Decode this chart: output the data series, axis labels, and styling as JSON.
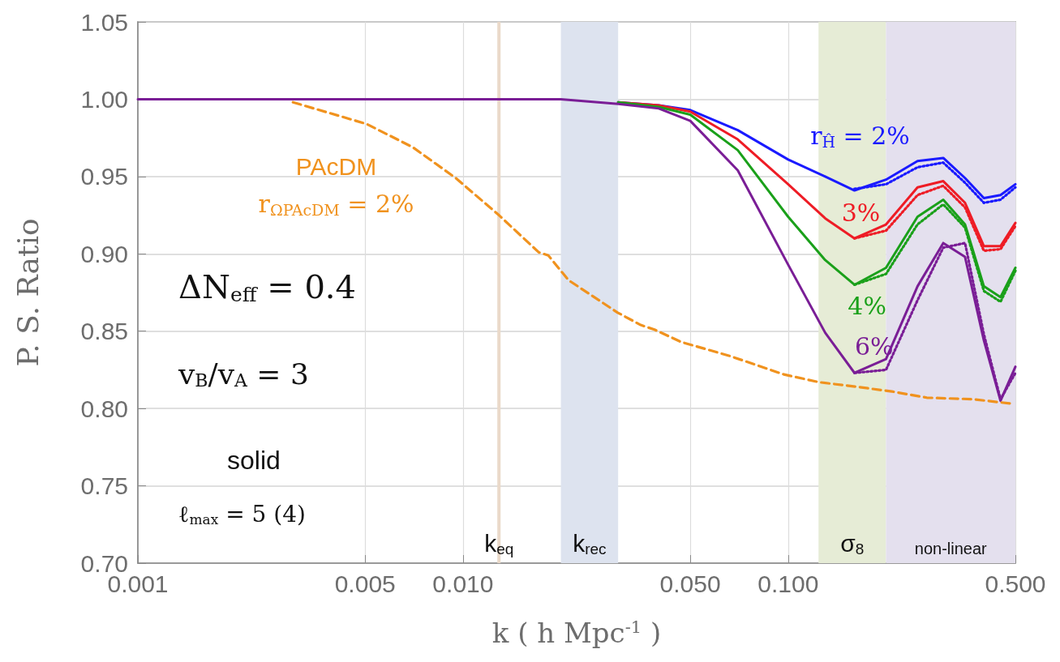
{
  "chart_data": {
    "type": "line",
    "xlabel": "k ( h Mpc$^{-1}$ )",
    "ylabel": "P. S. Ratio",
    "log": "x",
    "grid": true,
    "legend": false,
    "xlim": [
      0.001,
      0.5
    ],
    "xticks": [
      0.001,
      0.005,
      {
        "value": 0.01,
        "label": "0.010"
      },
      {
        "value": 0.05,
        "label": "0.050"
      },
      {
        "value": 0.1,
        "label": "0.100"
      },
      {
        "value": 0.5,
        "label": "0.500"
      }
    ],
    "ylim": [
      0.7,
      1.05
    ],
    "yticks": [
      {
        "value": 0.7,
        "label": "0.70"
      },
      0.75,
      {
        "value": 0.8,
        "label": "0.80"
      },
      0.85,
      {
        "value": 0.9,
        "label": "0.90"
      },
      0.95,
      {
        "value": 1,
        "label": "1.00"
      },
      1.05
    ],
    "x": [
      0.001,
      0.005,
      0.01,
      0.02,
      0.03,
      0.04,
      0.05,
      0.07,
      0.1,
      0.13,
      0.16,
      0.2,
      0.25,
      0.3,
      0.35,
      0.4,
      0.45,
      0.5
    ],
    "series": [
      {
        "name": "r$_{Ĥ}$ = 2%",
        "color": "#1a1aff",
        "line_style": "solid",
        "values": [
          null,
          null,
          null,
          null,
          0.998,
          0.996,
          0.993,
          0.98,
          0.961,
          0.95,
          0.941,
          0.948,
          0.96,
          0.962,
          0.949,
          0.936,
          0.938,
          0.945
        ]
      },
      {
        "color": "#1a1aff",
        "line_style": "dotted",
        "values": [
          null,
          null,
          null,
          null,
          null,
          null,
          null,
          null,
          null,
          null,
          0.942,
          0.945,
          0.956,
          0.959,
          0.946,
          0.933,
          0.935,
          0.943
        ]
      },
      {
        "name": "3%",
        "color": "#ee1c25",
        "line_style": "solid",
        "values": [
          null,
          null,
          null,
          null,
          0.998,
          0.996,
          0.992,
          0.974,
          0.945,
          0.923,
          0.91,
          0.919,
          0.943,
          0.947,
          0.933,
          0.905,
          0.905,
          0.92
        ]
      },
      {
        "color": "#ee1c25",
        "line_style": "dotted",
        "values": [
          null,
          null,
          null,
          null,
          null,
          null,
          null,
          null,
          null,
          null,
          0.91,
          0.915,
          0.938,
          0.944,
          0.93,
          0.902,
          0.903,
          0.918
        ]
      },
      {
        "name": "4%",
        "color": "#1aa01a",
        "line_style": "solid",
        "values": [
          null,
          null,
          null,
          null,
          0.998,
          0.995,
          0.99,
          0.967,
          0.924,
          0.896,
          0.88,
          0.891,
          0.924,
          0.935,
          0.919,
          0.879,
          0.872,
          0.891
        ]
      },
      {
        "color": "#1aa01a",
        "line_style": "dotted",
        "values": [
          null,
          null,
          null,
          null,
          null,
          null,
          null,
          null,
          null,
          null,
          0.88,
          0.887,
          0.919,
          0.932,
          0.917,
          0.876,
          0.869,
          0.889
        ]
      },
      {
        "color": "#7a1e96",
        "line_style": "dotted",
        "values": [
          null,
          null,
          null,
          null,
          null,
          null,
          null,
          null,
          null,
          null,
          0.823,
          0.825,
          0.87,
          0.904,
          0.907,
          0.848,
          0.806,
          0.823
        ]
      },
      {
        "name": "6%",
        "color": "#7a1e96",
        "line_style": "solid",
        "values": [
          1,
          1,
          1,
          1,
          0.997,
          0.994,
          0.986,
          0.954,
          0.893,
          0.849,
          0.823,
          0.832,
          0.879,
          0.907,
          0.898,
          0.844,
          0.805,
          0.827
        ]
      },
      {
        "name": "PAcDM\nr$_{ΩPAcDM}$ = 2%",
        "color": "#f0921e",
        "line_style": "dashed",
        "x": [
          0.003,
          0.00505,
          0.007,
          0.0095,
          0.0129,
          0.0171,
          0.0183,
          0.0211,
          0.0299,
          0.0352,
          0.0388,
          0.0469,
          0.0661,
          0.0971,
          0.1245,
          0.163,
          0.2085,
          0.267,
          0.3706,
          0.493
        ],
        "values": [
          0.998,
          0.984,
          0.969,
          0.949,
          0.925,
          0.901,
          0.899,
          0.883,
          0.862,
          0.854,
          0.851,
          0.843,
          0.834,
          0.822,
          0.817,
          0.814,
          0.811,
          0.807,
          0.806,
          0.803
        ]
      }
    ],
    "ref_lines": [
      {
        "axis": "x",
        "value": 0.0129,
        "label": "k$_{eq}$",
        "color": "#ead9c9",
        "line_style": "solid"
      }
    ],
    "bands": [
      {
        "axis": "x",
        "from": 0.02,
        "to": 0.03,
        "label": "k$_{rec}$",
        "color": "#dde3ef"
      },
      {
        "axis": "x",
        "from": 0.124,
        "to": 0.2,
        "label": "σ$_{8}$",
        "color": "#e6ecd6"
      },
      {
        "axis": "x",
        "from": 0.2,
        "to": 0.5,
        "label": "non-linear",
        "color": "#e4e0ee"
      }
    ],
    "annotations": [
      "ΔN$_{eff}$ = 0.4",
      "v$_{B}$/v$_{A}$ = 3",
      "solid",
      "ℓ$_{max}$ = 5 (4)"
    ]
  }
}
